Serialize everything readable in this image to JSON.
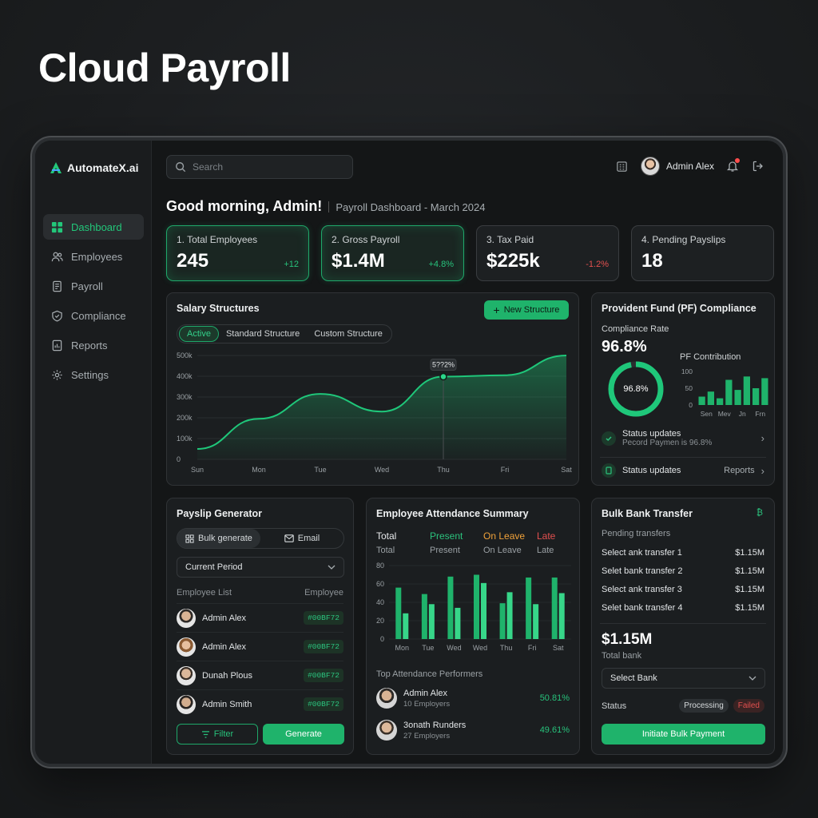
{
  "hero": {
    "title": "Cloud Payroll"
  },
  "brand": {
    "name": "AutomateX.ai",
    "accent": "#22c77a"
  },
  "sidebar": {
    "items": [
      {
        "label": "Dashboard",
        "icon": "grid-icon",
        "active": true
      },
      {
        "label": "Employees",
        "icon": "users-icon"
      },
      {
        "label": "Payroll",
        "icon": "receipt-icon"
      },
      {
        "label": "Compliance",
        "icon": "shield-icon"
      },
      {
        "label": "Reports",
        "icon": "report-icon"
      },
      {
        "label": "Settings",
        "icon": "gear-icon"
      }
    ]
  },
  "topbar": {
    "search_placeholder": "Search",
    "user_name": "Admin Alex"
  },
  "header": {
    "greeting": "Good morning, Admin!",
    "subtitle": "Payroll Dashboard - March 2024"
  },
  "kpis": [
    {
      "label": "1. Total Employees",
      "value": "245",
      "delta": "+12",
      "trend": "up"
    },
    {
      "label": "2. Gross Payroll",
      "value": "$1.4M",
      "delta": "+4.8%",
      "trend": "up"
    },
    {
      "label": "3. Tax Paid",
      "value": "$225k",
      "delta": "-1.2%",
      "trend": "down"
    },
    {
      "label": "4. Pending Payslips",
      "value": "18",
      "delta": "",
      "trend": ""
    }
  ],
  "salary": {
    "title": "Salary Structures",
    "new_button": "New Structure",
    "tabs": [
      "Active",
      "Standard Structure",
      "Custom Structure"
    ],
    "tooltip": "5??2%"
  },
  "salary_chart": {
    "type": "area",
    "categories": [
      "Sun",
      "Mon",
      "Tue",
      "Wed",
      "Thu",
      "Fri",
      "Sat"
    ],
    "y_ticks": [
      "500k",
      "400k",
      "300k",
      "200k",
      "100k",
      "0"
    ],
    "ylim": [
      0,
      500000
    ],
    "x": [
      0,
      1,
      2,
      3,
      4,
      5,
      6
    ],
    "values": [
      50000,
      195000,
      315000,
      230000,
      398000,
      405000,
      500000
    ]
  },
  "pf": {
    "title": "Provident Fund (PF) Compliance",
    "rate_label": "Compliance Rate",
    "rate_value": "96.8%",
    "donut_label": "96.8%",
    "donut_fraction": 0.968,
    "contribution_label": "PF Contribution",
    "status1_title": "Status updates",
    "status1_sub": "Pecord Paymen is 96.8%",
    "status2_title": "Status updates",
    "status2_link": "Reports"
  },
  "pf_chart": {
    "type": "bar",
    "categories": [
      "Sen",
      "Mev",
      "Jn",
      "Frn"
    ],
    "y_ticks": [
      "100",
      "50",
      "0"
    ],
    "ylim": [
      0,
      100
    ],
    "values": [
      25,
      40,
      20,
      75,
      45,
      85,
      50,
      80
    ]
  },
  "payslip": {
    "title": "Payslip Generator",
    "bulk_label": "Bulk generate",
    "email_label": "Email",
    "period_value": "Current Period",
    "list_head_left": "Employee List",
    "list_head_right": "Employee",
    "employees": [
      {
        "name": "Admin Alex",
        "code": "#00BF72"
      },
      {
        "name": "Admin Alex",
        "code": "#00BF72"
      },
      {
        "name": "Dunah Plous",
        "code": "#00BF72"
      },
      {
        "name": "Admin Smith",
        "code": "#00BF72"
      }
    ],
    "filter_label": "Filter",
    "generate_label": "Generate"
  },
  "attendance": {
    "title": "Employee Attendance Summary",
    "legend": [
      {
        "title": "Total",
        "sub": "Total",
        "color": "#e8eaec"
      },
      {
        "title": "Present",
        "sub": "Present",
        "color": "#2bc27d"
      },
      {
        "title": "On Leave",
        "sub": "On Leave",
        "color": "#f0a23a"
      },
      {
        "title": "Late",
        "sub": "Late",
        "color": "#e3504f"
      }
    ],
    "performers_title": "Top Attendance Performers",
    "performers": [
      {
        "name": "Admin Alex",
        "sub": "10 Employers",
        "pct": "50.81%"
      },
      {
        "name": "3onath Runders",
        "sub": "27 Employers",
        "pct": "49.61%"
      }
    ]
  },
  "attendance_chart": {
    "type": "bar",
    "categories": [
      "Mon",
      "Tue",
      "Wed",
      "Wed",
      "Thu",
      "Fri",
      "Sat"
    ],
    "y_ticks": [
      "80",
      "60",
      "40",
      "20",
      "0"
    ],
    "ylim": [
      0,
      80
    ],
    "series": [
      {
        "values": [
          56,
          49,
          68,
          70,
          39,
          67,
          67
        ]
      },
      {
        "values": [
          28,
          38,
          34,
          61,
          51,
          38,
          50
        ]
      }
    ]
  },
  "bank": {
    "title": "Bulk Bank Transfer",
    "pending_label": "Pending transfers",
    "transfers": [
      {
        "label": "Select ank transfer 1",
        "amount": "$1.15M"
      },
      {
        "label": "Selet bank transfer 2",
        "amount": "$1.15M"
      },
      {
        "label": "Select ank transfer 3",
        "amount": "$1.15M"
      },
      {
        "label": "Selet bank transfer 4",
        "amount": "$1.15M"
      }
    ],
    "total_value": "$1.15M",
    "total_label": "Total bank",
    "select_value": "Select Bank",
    "status_label": "Status",
    "status_processing": "Processing",
    "status_failed": "Failed",
    "action_label": "Initiate Bulk Payment"
  }
}
